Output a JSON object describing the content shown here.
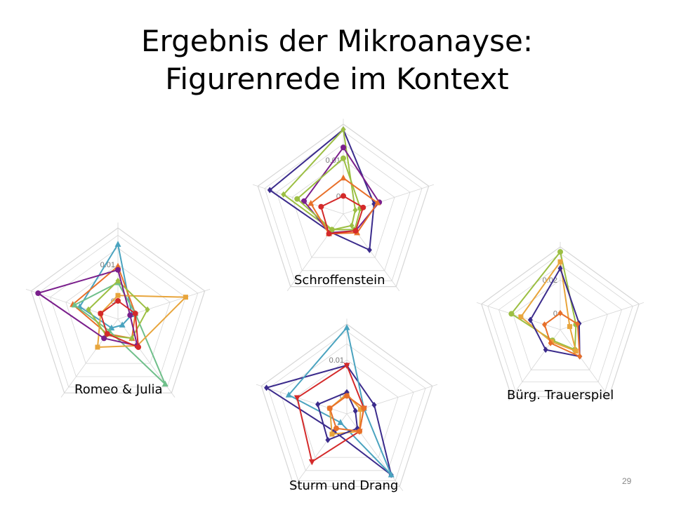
{
  "slide": {
    "title_line1": "Ergebnis der Mikroanayse:",
    "title_line2": "Figurenrede im Kontext",
    "page_number": "29"
  },
  "colors": {
    "purple": "#7a1f8c",
    "navy": "#3b2b8c",
    "lime": "#9cbf43",
    "orange": "#e8702a",
    "red": "#d42a2a",
    "teal": "#4aa3bf",
    "green": "#6fbf8a",
    "amber": "#e8a53c",
    "grid": "#d6d6d6"
  },
  "chart_data": [
    {
      "type": "radar",
      "caption": "Schroffenstein",
      "tick_labels": [
        "0.01",
        "0"
      ],
      "tick_values": [
        0.01,
        0
      ],
      "rmin": -0.005,
      "rmax": 0.02,
      "series": [
        {
          "color": "#3b2b8c",
          "marker": "diamond",
          "values": [
            0.0185,
            0.004,
            0.0074,
            0.0012,
            0.0165
          ]
        },
        {
          "color": "#9cbf43",
          "marker": "diamond",
          "values": [
            0.0185,
            -0.0015,
            -0.001,
            0.0005,
            0.0125
          ]
        },
        {
          "color": "#7a1f8c",
          "marker": "circle",
          "values": [
            0.0135,
            0.0055,
            0.0008,
            0.0015,
            0.0065
          ]
        },
        {
          "color": "#9cbf43",
          "marker": "circle",
          "values": [
            0.0105,
            0.0,
            0.0004,
            0.0004,
            0.0085
          ]
        },
        {
          "color": "#e8702a",
          "marker": "triangle",
          "values": [
            0.005,
            0.005,
            0.0015,
            0.0018,
            0.0045
          ]
        },
        {
          "color": "#d42a2a",
          "marker": "circle",
          "values": [
            0.0,
            0.0008,
            0.0008,
            0.0018,
            0.0015
          ]
        }
      ]
    },
    {
      "type": "radar",
      "caption": "Romeo & Julia",
      "tick_labels": [
        "0.01",
        "0"
      ],
      "tick_values": [
        0.01,
        0
      ],
      "rmin": -0.005,
      "rmax": 0.02,
      "series": [
        {
          "color": "#4aa3bf",
          "marker": "triangle",
          "values": [
            0.0155,
            -0.001,
            -0.003,
            -0.002,
            0.006
          ]
        },
        {
          "color": "#e8702a",
          "marker": "triangle",
          "values": [
            0.0095,
            0.0,
            0.0015,
            0.0,
            0.008
          ]
        },
        {
          "color": "#6fbf8a",
          "marker": "triangle",
          "values": [
            0.005,
            0.0,
            0.017,
            -0.001,
            0.0075
          ]
        },
        {
          "color": "#e8a53c",
          "marker": "square",
          "values": [
            0.0015,
            0.0145,
            0.004,
            0.0045,
            0.0
          ]
        },
        {
          "color": "#9cbf43",
          "marker": "diamond",
          "values": [
            0.0055,
            0.0035,
            0.0015,
            0.0005,
            0.0035
          ]
        },
        {
          "color": "#7a1f8c",
          "marker": "circle",
          "values": [
            0.0085,
            -0.0015,
            0.004,
            0.0015,
            0.018
          ]
        },
        {
          "color": "#d42a2a",
          "marker": "circle",
          "values": [
            0.0,
            0.0,
            0.0045,
            0.0,
            0.0
          ]
        }
      ]
    },
    {
      "type": "radar",
      "caption": "Bürg. Trauerspiel",
      "tick_labels": [
        "0.02",
        "0"
      ],
      "tick_values": [
        0.02,
        0
      ],
      "rmin": -0.01,
      "rmax": 0.04,
      "series": [
        {
          "color": "#9cbf43",
          "marker": "circle",
          "values": [
            0.037,
            0.0,
            0.005,
            -0.002,
            0.021
          ]
        },
        {
          "color": "#e8a53c",
          "marker": "square",
          "values": [
            0.031,
            -0.004,
            0.006,
            -0.001,
            0.015
          ]
        },
        {
          "color": "#3b2b8c",
          "marker": "diamond",
          "values": [
            0.027,
            0.002,
            0.01,
            0.005,
            0.009
          ]
        },
        {
          "color": "#e8702a",
          "marker": "diamond",
          "values": [
            0.0,
            0.001,
            0.01,
            0.0,
            0.0
          ]
        }
      ]
    },
    {
      "type": "radar",
      "caption": "Sturm und Drang",
      "tick_labels": [
        "0.01",
        "0"
      ],
      "tick_values": [
        0.01,
        0
      ],
      "rmin": -0.005,
      "rmax": 0.02,
      "series": [
        {
          "color": "#3b2b8c",
          "marker": "diamond",
          "values": [
            0.0085,
            0.003,
            0.016,
            0.001,
            0.0185
          ]
        },
        {
          "color": "#4aa3bf",
          "marker": "triangle",
          "values": [
            0.019,
            0.0,
            0.016,
            -0.002,
            0.012
          ]
        },
        {
          "color": "#d42a2a",
          "marker": "triangle_down",
          "values": [
            0.0085,
            0.0,
            0.001,
            0.0115,
            0.0095
          ]
        },
        {
          "color": "#e8a53c",
          "marker": "square",
          "values": [
            0.0005,
            -0.001,
            0.001,
            0.002,
            0.0
          ]
        },
        {
          "color": "#3b2b8c",
          "marker": "diamond",
          "values": [
            0.001,
            -0.0025,
            0.0,
            0.004,
            0.0035
          ]
        },
        {
          "color": "#e8702a",
          "marker": "circle",
          "values": [
            0.0,
            0.0,
            0.001,
            0.0,
            0.0
          ]
        }
      ]
    }
  ]
}
